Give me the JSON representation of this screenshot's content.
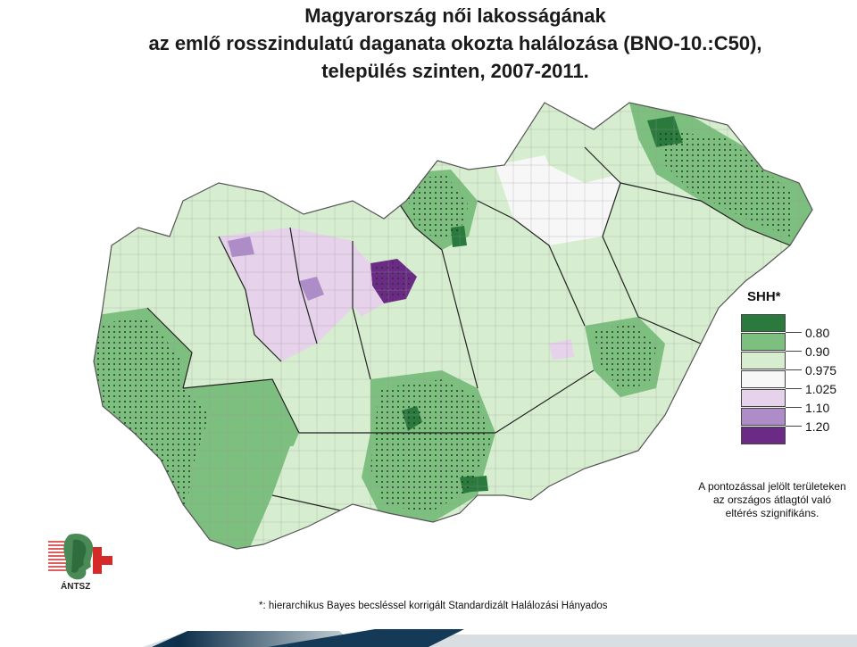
{
  "title": {
    "line1": "Magyarország női lakosságának",
    "line2": "az emlő rosszindulatú daganata okozta halálozása (BNO-10.:C50),",
    "line3": "település szinten, 2007-2011."
  },
  "legend": {
    "title": "SHH*",
    "breaks": [
      "0.80",
      "0.90",
      "0.975",
      "1.025",
      "1.10",
      "1.20"
    ],
    "colors": [
      "#2a7a3e",
      "#7dbf7e",
      "#d6eecf",
      "#f7f7f7",
      "#e6d2ea",
      "#ad8cc8",
      "#6b2a86"
    ]
  },
  "note": {
    "line1": "A pontozással jelölt területeken",
    "line2": "az országos átlagtól való",
    "line3": "eltérés szignifikáns."
  },
  "footnote": "*: hierarchikus Bayes becsléssel korrigált Standardizált Halálozási Hányados",
  "logo": {
    "text": "ÁNTSZ",
    "icon": "antsz-logo-icon"
  }
}
